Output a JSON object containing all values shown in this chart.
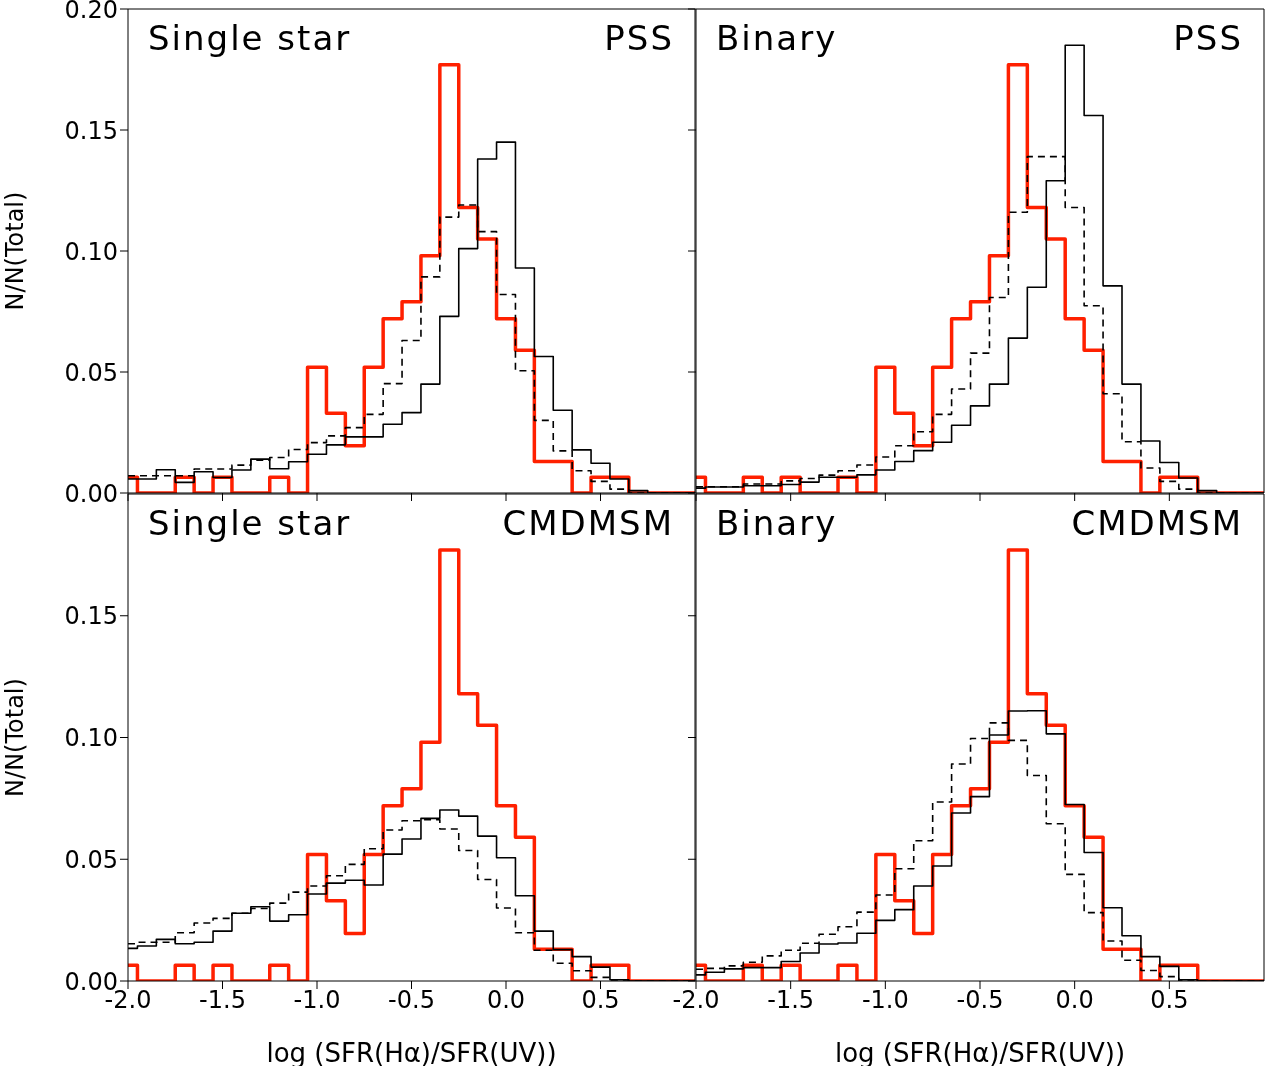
{
  "chart_data": [
    {
      "type": "step",
      "annotations": [
        "Single star",
        "PSS"
      ],
      "ylabel": "N/N(Total)",
      "tick_labels": "y",
      "xlim": [
        -2,
        1
      ],
      "ylim": [
        0,
        0.2
      ],
      "xticks": [
        -2,
        -1.5,
        -1,
        -0.5,
        0,
        0.5
      ],
      "yticks": [
        {
          "value": 0,
          "label": "0.00"
        },
        {
          "value": 0.05,
          "label": "0.05"
        },
        {
          "value": 0.1,
          "label": "0.10"
        },
        {
          "value": 0.15,
          "label": "0.15"
        },
        {
          "value": 0.2,
          "label": "0.20"
        }
      ],
      "x": [
        -2.0,
        -1.95,
        -1.85,
        -1.75,
        -1.65,
        -1.55,
        -1.45,
        -1.35,
        -1.25,
        -1.15,
        -1.05,
        -0.95,
        -0.85,
        -0.75,
        -0.65,
        -0.55,
        -0.45,
        -0.35,
        -0.25,
        -0.15,
        -0.05,
        0.05,
        0.15,
        0.25,
        0.35,
        0.45,
        0.55,
        0.65,
        0.75,
        0.85,
        0.95,
        1.0
      ],
      "series": [
        {
          "color": "#000000",
          "line_style": "solid",
          "values": [
            0.0058,
            0.0058,
            0.0096,
            0.0044,
            0.0088,
            0.0064,
            0.0095,
            0.014,
            0.01,
            0.0129,
            0.016,
            0.0199,
            0.0232,
            0.0232,
            0.0284,
            0.0332,
            0.045,
            0.073,
            0.101,
            0.138,
            0.145,
            0.093,
            0.0564,
            0.0342,
            0.0178,
            0.0123,
            0.0058,
            0.001,
            0,
            0,
            0,
            0
          ]
        },
        {
          "color": "#000000",
          "line_style": "dashed",
          "values": [
            0.0071,
            0.0071,
            0.0071,
            0.0071,
            0.0099,
            0.0099,
            0.0115,
            0.0136,
            0.0147,
            0.018,
            0.0208,
            0.0236,
            0.027,
            0.0325,
            0.0452,
            0.063,
            0.0893,
            0.114,
            0.119,
            0.108,
            0.082,
            0.0505,
            0.03,
            0.0174,
            0.0092,
            0.0048,
            0.0016,
            0,
            0,
            0,
            0,
            0
          ]
        },
        {
          "color": "#ff2000",
          "line_style": "solid",
          "values": [
            0.0065,
            0,
            0,
            0.0065,
            0,
            0.0065,
            0,
            0,
            0.0065,
            0,
            0.052,
            0.033,
            0.0195,
            0.052,
            0.072,
            0.079,
            0.098,
            0.177,
            0.118,
            0.105,
            0.072,
            0.059,
            0.013,
            0.013,
            0,
            0.0065,
            0.0065,
            0,
            0,
            0,
            0,
            0
          ]
        }
      ]
    },
    {
      "type": "step",
      "annotations": [
        "Binary",
        "PSS"
      ],
      "tick_labels": false,
      "xlim": [
        -2,
        1
      ],
      "ylim": [
        0,
        0.2
      ],
      "xticks": [
        -2,
        -1.5,
        -1,
        -0.5,
        0,
        0.5
      ],
      "yticks": [
        0,
        0.05,
        0.1,
        0.15,
        0.2
      ],
      "x": [
        -2.0,
        -1.95,
        -1.85,
        -1.75,
        -1.65,
        -1.55,
        -1.45,
        -1.35,
        -1.25,
        -1.15,
        -1.05,
        -0.95,
        -0.85,
        -0.75,
        -0.65,
        -0.55,
        -0.45,
        -0.35,
        -0.25,
        -0.15,
        -0.05,
        0.05,
        0.15,
        0.25,
        0.35,
        0.45,
        0.55,
        0.65,
        0.75,
        0.85,
        0.95,
        1.0
      ],
      "series": [
        {
          "color": "#000000",
          "line_style": "solid",
          "values": [
            0.002,
            0.0025,
            0.0025,
            0.003,
            0.003,
            0.0035,
            0.0045,
            0.0065,
            0.0065,
            0.0075,
            0.0095,
            0.013,
            0.0175,
            0.021,
            0.028,
            0.036,
            0.045,
            0.064,
            0.085,
            0.129,
            0.185,
            0.156,
            0.0856,
            0.045,
            0.0215,
            0.0126,
            0.0062,
            0.001,
            0,
            0,
            0,
            0
          ]
        },
        {
          "color": "#000000",
          "line_style": "dashed",
          "values": [
            0.0026,
            0.0026,
            0.0026,
            0.0037,
            0.0037,
            0.005,
            0.006,
            0.0074,
            0.0092,
            0.0116,
            0.0149,
            0.0195,
            0.0253,
            0.0325,
            0.043,
            0.0578,
            0.0808,
            0.116,
            0.139,
            0.139,
            0.118,
            0.0774,
            0.041,
            0.0212,
            0.0103,
            0.0048,
            0.0016,
            0,
            0,
            0,
            0,
            0
          ]
        },
        {
          "color": "#ff2000",
          "line_style": "solid",
          "values": [
            0.0065,
            0,
            0,
            0.0065,
            0,
            0.0065,
            0,
            0,
            0.0065,
            0,
            0.052,
            0.033,
            0.0195,
            0.052,
            0.072,
            0.079,
            0.098,
            0.177,
            0.118,
            0.105,
            0.072,
            0.059,
            0.013,
            0.013,
            0,
            0.0065,
            0.0065,
            0,
            0,
            0,
            0,
            0
          ]
        }
      ]
    },
    {
      "type": "step",
      "annotations": [
        "Single star",
        "CMDMSM"
      ],
      "xlabel": "log (SFR(Hα)/SFR(UV))",
      "ylabel": "N/N(Total)",
      "xlim": [
        -2,
        1
      ],
      "ylim": [
        0,
        0.2
      ],
      "xticks": [
        {
          "value": -2,
          "label": "-2.0"
        },
        {
          "value": -1.5,
          "label": "-1.5"
        },
        {
          "value": -1,
          "label": "-1.0"
        },
        {
          "value": -0.5,
          "label": "-0.5"
        },
        {
          "value": 0,
          "label": "0.0"
        },
        {
          "value": 0.5,
          "label": "0.5"
        }
      ],
      "yticks": [
        {
          "value": 0,
          "label": "0.00"
        },
        {
          "value": 0.05,
          "label": "0.05"
        },
        {
          "value": 0.1,
          "label": "0.10"
        },
        {
          "value": 0.15,
          "label": "0.15"
        }
      ],
      "x": [
        -2.0,
        -1.95,
        -1.85,
        -1.75,
        -1.65,
        -1.55,
        -1.45,
        -1.35,
        -1.25,
        -1.15,
        -1.05,
        -0.95,
        -0.85,
        -0.75,
        -0.65,
        -0.55,
        -0.45,
        -0.35,
        -0.25,
        -0.15,
        -0.05,
        0.05,
        0.15,
        0.25,
        0.35,
        0.45,
        0.55,
        0.65,
        0.75,
        0.85,
        0.95,
        1.0
      ],
      "series": [
        {
          "color": "#000000",
          "line_style": "solid",
          "values": [
            0.0134,
            0.0144,
            0.0171,
            0.0153,
            0.0159,
            0.0205,
            0.0278,
            0.0305,
            0.0246,
            0.0272,
            0.0357,
            0.0402,
            0.0414,
            0.0394,
            0.0521,
            0.0583,
            0.0668,
            0.0702,
            0.0677,
            0.0595,
            0.0506,
            0.035,
            0.0205,
            0.0129,
            0.01,
            0.0057,
            0.0005,
            0,
            0,
            0,
            0,
            0
          ]
        },
        {
          "color": "#000000",
          "line_style": "dashed",
          "values": [
            0.0153,
            0.0159,
            0.0159,
            0.0198,
            0.0238,
            0.0257,
            0.0278,
            0.0298,
            0.032,
            0.0365,
            0.039,
            0.0432,
            0.0479,
            0.0543,
            0.062,
            0.0658,
            0.0662,
            0.0624,
            0.0536,
            0.0417,
            0.03,
            0.0198,
            0.0126,
            0.0073,
            0.0042,
            0.0015,
            0,
            0,
            0,
            0,
            0,
            0
          ]
        },
        {
          "color": "#ff2000",
          "line_style": "solid",
          "values": [
            0.0065,
            0,
            0,
            0.0065,
            0,
            0.0065,
            0,
            0,
            0.0065,
            0,
            0.052,
            0.033,
            0.0195,
            0.052,
            0.072,
            0.079,
            0.098,
            0.177,
            0.118,
            0.105,
            0.072,
            0.059,
            0.013,
            0.013,
            0,
            0.0065,
            0.0065,
            0,
            0,
            0,
            0,
            0
          ]
        }
      ]
    },
    {
      "type": "step",
      "annotations": [
        "Binary",
        "CMDMSM"
      ],
      "xlabel": "log (SFR(Hα)/SFR(UV))",
      "tick_labels": "x",
      "xlim": [
        -2,
        1
      ],
      "ylim": [
        0,
        0.2
      ],
      "xticks": [
        {
          "value": -2,
          "label": "-2.0"
        },
        {
          "value": -1.5,
          "label": "-1.5"
        },
        {
          "value": -1,
          "label": "-1.0"
        },
        {
          "value": -0.5,
          "label": "-0.5"
        },
        {
          "value": 0,
          "label": "0.0"
        },
        {
          "value": 0.5,
          "label": "0.5"
        }
      ],
      "yticks": [
        0,
        0.05,
        0.1,
        0.15
      ],
      "x": [
        -2.0,
        -1.95,
        -1.85,
        -1.75,
        -1.65,
        -1.55,
        -1.45,
        -1.35,
        -1.25,
        -1.15,
        -1.05,
        -0.95,
        -0.85,
        -0.75,
        -0.65,
        -0.55,
        -0.45,
        -0.35,
        -0.25,
        -0.15,
        -0.05,
        0.05,
        0.15,
        0.25,
        0.35,
        0.45,
        0.55,
        0.65,
        0.75,
        0.85,
        0.95,
        1.0
      ],
      "series": [
        {
          "color": "#000000",
          "line_style": "solid",
          "values": [
            0.0025,
            0.0036,
            0.005,
            0.0055,
            0.0055,
            0.008,
            0.0115,
            0.0152,
            0.0156,
            0.0196,
            0.0249,
            0.0293,
            0.039,
            0.0472,
            0.069,
            0.0757,
            0.101,
            0.1109,
            0.111,
            0.1015,
            0.0725,
            0.0528,
            0.0301,
            0.0186,
            0.01,
            0.006,
            0.0005,
            0,
            0,
            0,
            0,
            0
          ]
        },
        {
          "color": "#000000",
          "line_style": "dashed",
          "values": [
            0.0048,
            0.0052,
            0.0062,
            0.0077,
            0.0103,
            0.0126,
            0.0155,
            0.0192,
            0.0223,
            0.0283,
            0.0353,
            0.0461,
            0.0576,
            0.0735,
            0.0891,
            0.0996,
            0.106,
            0.0988,
            0.0844,
            0.0646,
            0.0438,
            0.0281,
            0.0164,
            0.0085,
            0.0043,
            0.0018,
            0,
            0,
            0,
            0,
            0,
            0
          ]
        },
        {
          "color": "#ff2000",
          "line_style": "solid",
          "values": [
            0.0065,
            0,
            0,
            0.0065,
            0,
            0.0065,
            0,
            0,
            0.0065,
            0,
            0.052,
            0.033,
            0.0195,
            0.052,
            0.072,
            0.079,
            0.098,
            0.177,
            0.118,
            0.105,
            0.072,
            0.059,
            0.013,
            0.013,
            0,
            0.0065,
            0.0065,
            0,
            0,
            0,
            0,
            0
          ]
        }
      ]
    }
  ]
}
